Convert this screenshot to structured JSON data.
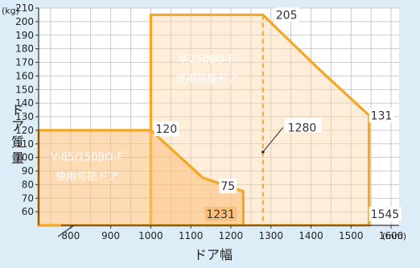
{
  "chart_data": {
    "type": "area",
    "title": "",
    "xlabel": "ドア幅",
    "ylabel": "ドア質量",
    "x_unit": "(mm)",
    "y_unit": "(kg)",
    "xlim": [
      720,
      1620
    ],
    "ylim": [
      50,
      210
    ],
    "x_ticks": [
      800,
      900,
      1000,
      1100,
      1200,
      1300,
      1400,
      1500,
      1600
    ],
    "y_ticks": [
      60,
      70,
      80,
      90,
      100,
      110,
      120,
      130,
      140,
      150,
      160,
      170,
      180,
      190,
      200,
      210
    ],
    "grid": true,
    "regions": [
      {
        "label_line1": "V-85/150BO-F",
        "label_line2": "使用可能ドア",
        "points": [
          [
            720,
            50
          ],
          [
            720,
            120
          ],
          [
            1000,
            120
          ],
          [
            1000,
            120
          ],
          [
            1130,
            85
          ],
          [
            1231,
            75
          ],
          [
            1231,
            50
          ]
        ]
      },
      {
        "label_line1": "V-250BO-F",
        "label_line2": "使用可能ドア",
        "points": [
          [
            1000,
            50
          ],
          [
            1000,
            205
          ],
          [
            1280,
            205
          ],
          [
            1420,
            165
          ],
          [
            1545,
            131
          ],
          [
            1545,
            50
          ]
        ]
      }
    ],
    "reference_line": {
      "x": 1280,
      "label": "1280"
    },
    "annotations": [
      "205",
      "131",
      "120",
      "75",
      "1231",
      "1545"
    ]
  }
}
